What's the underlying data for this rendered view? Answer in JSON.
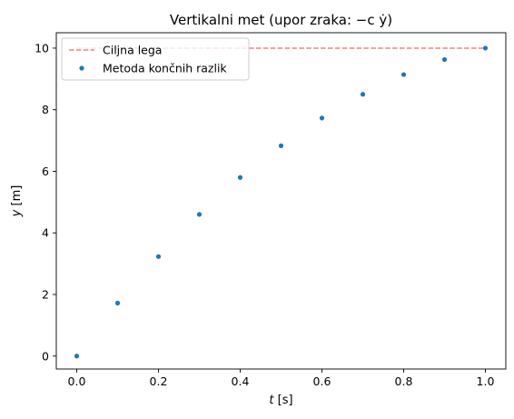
{
  "chart_data": {
    "type": "scatter",
    "title": "Vertikalni met (upor zraka: −c ẏ)",
    "xlabel_var": "t",
    "xlabel_unit": " [s]",
    "ylabel_var": "y",
    "ylabel_unit": " [m]",
    "xlim": [
      -0.05,
      1.05
    ],
    "ylim": [
      -0.42,
      10.5
    ],
    "xticks": [
      "0.0",
      "0.2",
      "0.4",
      "0.6",
      "0.8",
      "1.0"
    ],
    "xtick_values": [
      0.0,
      0.2,
      0.4,
      0.6,
      0.8,
      1.0
    ],
    "yticks": [
      "0",
      "2",
      "4",
      "6",
      "8",
      "10"
    ],
    "ytick_values": [
      0,
      2,
      4,
      6,
      8,
      10
    ],
    "grid": false,
    "legend_position": "upper-left",
    "series": [
      {
        "name": "Ciljna lega",
        "kind": "line",
        "style": "dashed",
        "color": "#f08080",
        "x": [
          0.0,
          1.0
        ],
        "y": [
          10,
          10
        ]
      },
      {
        "name": "Metoda končnih razlik",
        "kind": "points",
        "color": "#1f77b4",
        "x": [
          0.0,
          0.1,
          0.2,
          0.3,
          0.4,
          0.5,
          0.6,
          0.7,
          0.8,
          0.9,
          1.0
        ],
        "y": [
          0.0,
          1.72,
          3.23,
          4.6,
          5.8,
          6.83,
          7.73,
          8.5,
          9.14,
          9.63,
          10.0
        ]
      }
    ]
  }
}
